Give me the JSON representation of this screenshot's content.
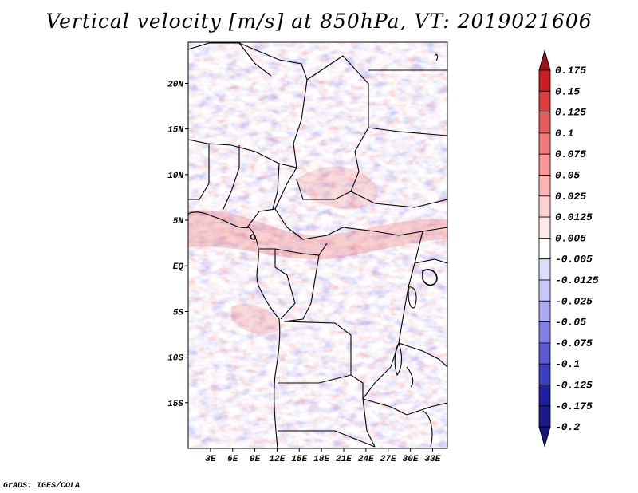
{
  "title": "Vertical velocity [m/s] at 850hPa, VT: 2019021606",
  "credit": "GrADS: IGES/COLA",
  "map": {
    "lon_range": [
      0,
      35
    ],
    "lat_range": [
      -20,
      24.5
    ],
    "lat_ticks": [
      {
        "value": 20,
        "label": "20N"
      },
      {
        "value": 15,
        "label": "15N"
      },
      {
        "value": 10,
        "label": "10N"
      },
      {
        "value": 5,
        "label": "5N"
      },
      {
        "value": 0,
        "label": "EQ"
      },
      {
        "value": -5,
        "label": "5S"
      },
      {
        "value": -10,
        "label": "10S"
      },
      {
        "value": -15,
        "label": "15S"
      }
    ],
    "lon_ticks": [
      {
        "value": 3,
        "label": "3E"
      },
      {
        "value": 6,
        "label": "6E"
      },
      {
        "value": 9,
        "label": "9E"
      },
      {
        "value": 12,
        "label": "12E"
      },
      {
        "value": 15,
        "label": "15E"
      },
      {
        "value": 18,
        "label": "18E"
      },
      {
        "value": 21,
        "label": "21E"
      },
      {
        "value": 24,
        "label": "24E"
      },
      {
        "value": 27,
        "label": "27E"
      },
      {
        "value": 30,
        "label": "30E"
      },
      {
        "value": 33,
        "label": "33E"
      }
    ]
  },
  "colorbar": {
    "labels": [
      "0.175",
      "0.15",
      "0.125",
      "0.1",
      "0.075",
      "0.05",
      "0.025",
      "0.0125",
      "0.005",
      "-0.005",
      "-0.0125",
      "-0.025",
      "-0.05",
      "-0.075",
      "-0.1",
      "-0.125",
      "-0.175",
      "-0.2"
    ],
    "colors": [
      "#a01419",
      "#c81e23",
      "#dc3c3c",
      "#e65a5a",
      "#f07878",
      "#fa9696",
      "#fcb4b4",
      "#fcd2d2",
      "#ffe9e9",
      "#ffffff",
      "#dcdcfc",
      "#c8c8fa",
      "#aaaaf0",
      "#8282e6",
      "#5a5ad2",
      "#3c3cbe",
      "#1e1ea0",
      "#1a1a8a",
      "#14147a"
    ],
    "top_color": "#a01419",
    "bottom_color": "#14147a"
  }
}
